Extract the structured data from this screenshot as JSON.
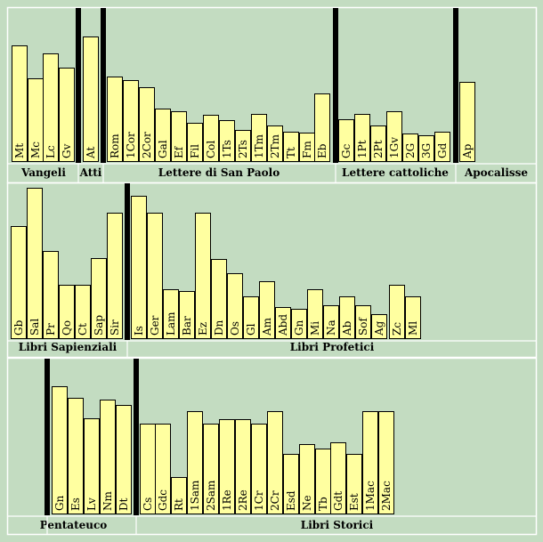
{
  "chart_data": [
    {
      "type": "bar",
      "title": "",
      "groups": [
        {
          "name": "Vangeli",
          "books": [
            {
              "label": "Mt",
              "value": 130
            },
            {
              "label": "Mc",
              "value": 93
            },
            {
              "label": "Lc",
              "value": 121
            },
            {
              "label": "Gv",
              "value": 105
            }
          ]
        },
        {
          "name": "Atti",
          "books": [
            {
              "label": "At",
              "value": 140
            }
          ]
        },
        {
          "name": "Lettere di San Paolo",
          "books": [
            {
              "label": "Rom",
              "value": 95
            },
            {
              "label": "1Cor",
              "value": 91
            },
            {
              "label": "2Cor",
              "value": 83
            },
            {
              "label": "Gal",
              "value": 59
            },
            {
              "label": "Ef",
              "value": 56
            },
            {
              "label": "Fil",
              "value": 43
            },
            {
              "label": "Col",
              "value": 52
            },
            {
              "label": "1Ts",
              "value": 46
            },
            {
              "label": "2Ts",
              "value": 35
            },
            {
              "label": "1Tm",
              "value": 53
            },
            {
              "label": "2Tm",
              "value": 40
            },
            {
              "label": "Tt",
              "value": 33
            },
            {
              "label": "Fm",
              "value": 32
            },
            {
              "label": "Eb",
              "value": 76
            }
          ]
        },
        {
          "name": "Lettere cattoliche",
          "books": [
            {
              "label": "Gc",
              "value": 47
            },
            {
              "label": "1Pt",
              "value": 53
            },
            {
              "label": "2Pt",
              "value": 40
            },
            {
              "label": "1Gv",
              "value": 56
            },
            {
              "label": "2G",
              "value": 31
            },
            {
              "label": "3G",
              "value": 29
            },
            {
              "label": "Gd",
              "value": 33
            }
          ]
        },
        {
          "name": "Apocalisse",
          "books": [
            {
              "label": "Ap",
              "value": 89
            }
          ]
        }
      ]
    },
    {
      "type": "bar",
      "title": "",
      "groups": [
        {
          "name": "Libri  Sapienziali",
          "books": [
            {
              "label": "Gb",
              "value": 126
            },
            {
              "label": "Sal",
              "value": 169
            },
            {
              "label": "Pr",
              "value": 98
            },
            {
              "label": "Qo",
              "value": 60
            },
            {
              "label": "Ct",
              "value": 60
            },
            {
              "label": "Sap",
              "value": 90
            },
            {
              "label": "Sir",
              "value": 141
            }
          ]
        },
        {
          "name": "Libri Profetici",
          "books": [
            {
              "label": "Is",
              "value": 160
            },
            {
              "label": "Ger",
              "value": 141
            },
            {
              "label": "Lam",
              "value": 55
            },
            {
              "label": "Bar",
              "value": 53
            },
            {
              "label": "Ez",
              "value": 141
            },
            {
              "label": "Dn",
              "value": 89
            },
            {
              "label": "Os",
              "value": 73
            },
            {
              "label": "Gl",
              "value": 47
            },
            {
              "label": "Am",
              "value": 64
            },
            {
              "label": "Abd",
              "value": 35
            },
            {
              "label": "Gn",
              "value": 33
            },
            {
              "label": "Mi",
              "value": 55
            },
            {
              "label": "Na",
              "value": 37
            },
            {
              "label": "Ab",
              "value": 47
            },
            {
              "label": "Sof",
              "value": 37
            },
            {
              "label": "Ag",
              "value": 27
            },
            {
              "label": "Zc",
              "value": 60
            },
            {
              "label": "Ml",
              "value": 47
            }
          ]
        }
      ]
    },
    {
      "type": "bar",
      "title": "",
      "groups": [
        {
          "name": "Pentateuco",
          "books": [
            {
              "label": "Gn",
              "value": 143
            },
            {
              "label": "Es",
              "value": 130
            },
            {
              "label": "Lv",
              "value": 107
            },
            {
              "label": "Nm",
              "value": 128
            },
            {
              "label": "Dt",
              "value": 122
            }
          ]
        },
        {
          "name": "Libri Storici",
          "books": [
            {
              "label": "Cs",
              "value": 101
            },
            {
              "label": "Gdc",
              "value": 101
            },
            {
              "label": "Rt",
              "value": 41
            },
            {
              "label": "1Sam",
              "value": 115
            },
            {
              "label": "2Sam",
              "value": 101
            },
            {
              "label": "1Re",
              "value": 106
            },
            {
              "label": "2Re",
              "value": 106
            },
            {
              "label": "1Cr",
              "value": 101
            },
            {
              "label": "2Cr",
              "value": 115
            },
            {
              "label": "Esd",
              "value": 67
            },
            {
              "label": "Ne",
              "value": 78
            },
            {
              "label": "Tb",
              "value": 73
            },
            {
              "label": "Gdt",
              "value": 80
            },
            {
              "label": "Est",
              "value": 67
            },
            {
              "label": "1Mac",
              "value": 115
            },
            {
              "label": "2Mac",
              "value": 115
            }
          ]
        }
      ]
    }
  ]
}
